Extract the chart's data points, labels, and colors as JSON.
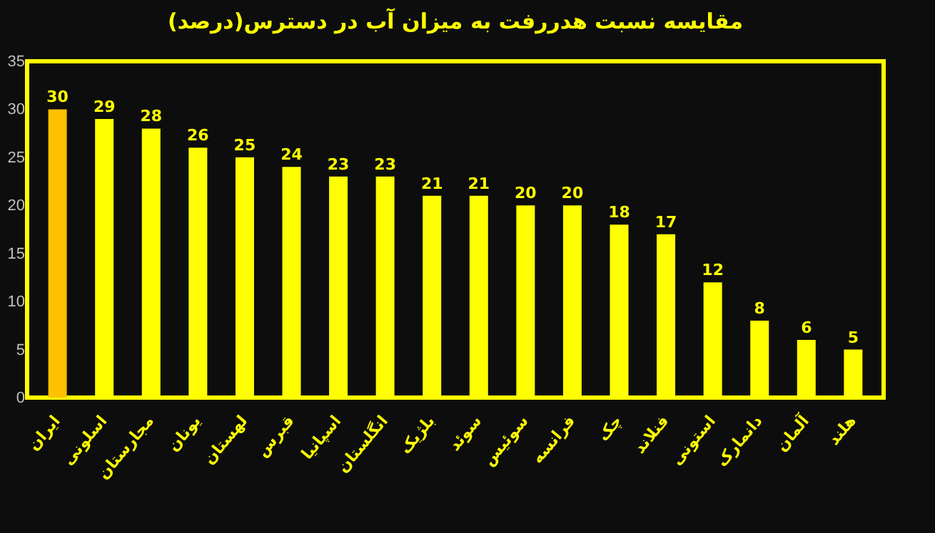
{
  "chart_data": {
    "type": "bar",
    "title": "مقایسه نسبت هدررفت به میزان آب در دسترس(درصد)",
    "categories": [
      "ایران",
      "اسلونی",
      "مجارستان",
      "یونان",
      "لهستان",
      "قبرس",
      "اسپانیا",
      "انگلستان",
      "بلژیک",
      "سوئد",
      "سوئیس",
      "فرانسه",
      "چک",
      "فنلاند",
      "استونی",
      "دانمارک",
      "آلمان",
      "هلند"
    ],
    "values": [
      30,
      29,
      28,
      26,
      25,
      24,
      23,
      23,
      21,
      21,
      20,
      20,
      18,
      17,
      12,
      8,
      6,
      5
    ],
    "colors": [
      "#ffc000",
      "#ffff00",
      "#ffff00",
      "#ffff00",
      "#ffff00",
      "#ffff00",
      "#ffff00",
      "#ffff00",
      "#ffff00",
      "#ffff00",
      "#ffff00",
      "#ffff00",
      "#ffff00",
      "#ffff00",
      "#ffff00",
      "#ffff00",
      "#ffff00",
      "#ffff00"
    ],
    "ylim": [
      0,
      35
    ],
    "yticks": [
      0,
      5,
      10,
      15,
      20,
      25,
      30,
      35
    ],
    "grid": false,
    "data_labels": true
  }
}
